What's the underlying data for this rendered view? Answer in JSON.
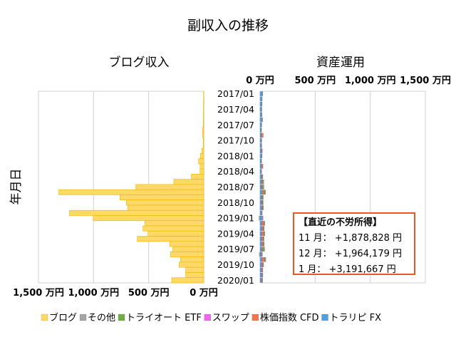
{
  "chart_data": {
    "title": "副収入の推移",
    "ylabel": "年月日",
    "categories": [
      "2017/01",
      "2017/02",
      "2017/03",
      "2017/04",
      "2017/05",
      "2017/06",
      "2017/07",
      "2017/08",
      "2017/09",
      "2017/10",
      "2017/11",
      "2017/12",
      "2018/01",
      "2018/02",
      "2018/03",
      "2018/04",
      "2018/05",
      "2018/06",
      "2018/07",
      "2018/08",
      "2018/09",
      "2018/10",
      "2018/11",
      "2018/12",
      "2019/01",
      "2019/02",
      "2019/03",
      "2019/04",
      "2019/05",
      "2019/06",
      "2019/07",
      "2019/08",
      "2019/09",
      "2019/10",
      "2019/11",
      "2019/12",
      "2020/01"
    ],
    "ytick_labels": [
      "2017/01",
      "2017/04",
      "2017/07",
      "2017/10",
      "2018/01",
      "2018/04",
      "2018/07",
      "2018/10",
      "2019/01",
      "2019/04",
      "2019/07",
      "2019/10",
      "2020/01"
    ],
    "panels": [
      {
        "title": "ブログ収入",
        "type": "bar",
        "orientation": "horizontal-reversed",
        "xlim": [
          0,
          1500
        ],
        "xtick_labels": [
          "1,500 万円",
          "1,000 万円",
          "500 万円",
          "0 万円"
        ],
        "grid": true,
        "series": [
          {
            "name": "ブログ",
            "color": "#ffd966",
            "values": [
              2,
              2,
              3,
              3,
              4,
              4,
              5,
              10,
              10,
              5,
              5,
              17,
              30,
              47,
              34,
              34,
              112,
              272,
              616,
              1315,
              761,
              703,
              690,
              1218,
              1004,
              534,
              552,
              506,
              603,
              308,
              282,
              302,
              211,
              224,
              164,
              164,
              291
            ]
          }
        ]
      },
      {
        "title": "資産運用",
        "type": "stacked-bar",
        "orientation": "horizontal",
        "xlim": [
          0,
          1500
        ],
        "xtick_labels": [
          "0 万円",
          "500 万円",
          "1,000 万円",
          "1,500 万円"
        ],
        "grid": true,
        "series": [
          {
            "name": "トラリピ FX",
            "color": "#4ea3dc",
            "values": [
              20,
              15,
              14,
              12,
              12,
              15,
              12,
              10,
              10,
              12,
              12,
              12,
              14,
              10,
              12,
              10,
              14,
              12,
              12,
              18,
              14,
              12,
              14,
              12,
              22,
              14,
              14,
              14,
              12,
              14,
              12,
              12,
              14,
              12,
              12,
              12,
              10
            ]
          },
          {
            "name": "スワップ",
            "color": "#ee66ee",
            "values": [
              2,
              2,
              2,
              2,
              2,
              2,
              2,
              2,
              2,
              2,
              2,
              2,
              2,
              2,
              2,
              2,
              2,
              2,
              3,
              3,
              3,
              4,
              4,
              4,
              6,
              5,
              5,
              5,
              5,
              5,
              5,
              5,
              6,
              6,
              6,
              6,
              6
            ]
          },
          {
            "name": "株価指数 CFD",
            "color": "#f07850",
            "values": [
              0,
              0,
              0,
              0,
              0,
              0,
              0,
              0,
              15,
              0,
              0,
              5,
              0,
              0,
              10,
              0,
              5,
              8,
              5,
              15,
              5,
              5,
              5,
              0,
              0,
              15,
              10,
              15,
              10,
              10,
              5,
              0,
              20,
              5,
              5,
              0,
              0
            ]
          },
          {
            "name": "トライオート ETF",
            "color": "#70ad47",
            "values": [
              0,
              0,
              0,
              0,
              0,
              0,
              0,
              0,
              0,
              0,
              0,
              0,
              0,
              0,
              0,
              0,
              0,
              5,
              8,
              10,
              5,
              5,
              5,
              0,
              0,
              5,
              5,
              5,
              5,
              5,
              15,
              5,
              5,
              5,
              0,
              5,
              5
            ]
          },
          {
            "name": "その他",
            "color": "#a5a5a5",
            "values": [
              3,
              3,
              3,
              3,
              5,
              8,
              2,
              2,
              2,
              2,
              2,
              2,
              3,
              3,
              3,
              3,
              5,
              8,
              8,
              5,
              3,
              3,
              3,
              5,
              -10,
              5,
              5,
              5,
              5,
              5,
              5,
              -8,
              8,
              5,
              3,
              3,
              3
            ]
          }
        ]
      }
    ],
    "legend": {
      "position": "bottom",
      "entries": [
        "ブログ",
        "その他",
        "トライオート ETF",
        "スワップ",
        "株価指数 CFD",
        "トラリピ FX"
      ]
    },
    "annotation": {
      "heading": "【直近の不労所得】",
      "lines": [
        "11 月： +1,878,828 円",
        "12 月： +1,964,179 円",
        "1 月： +3,191,667 円"
      ],
      "border_color": "#e8582b"
    }
  }
}
